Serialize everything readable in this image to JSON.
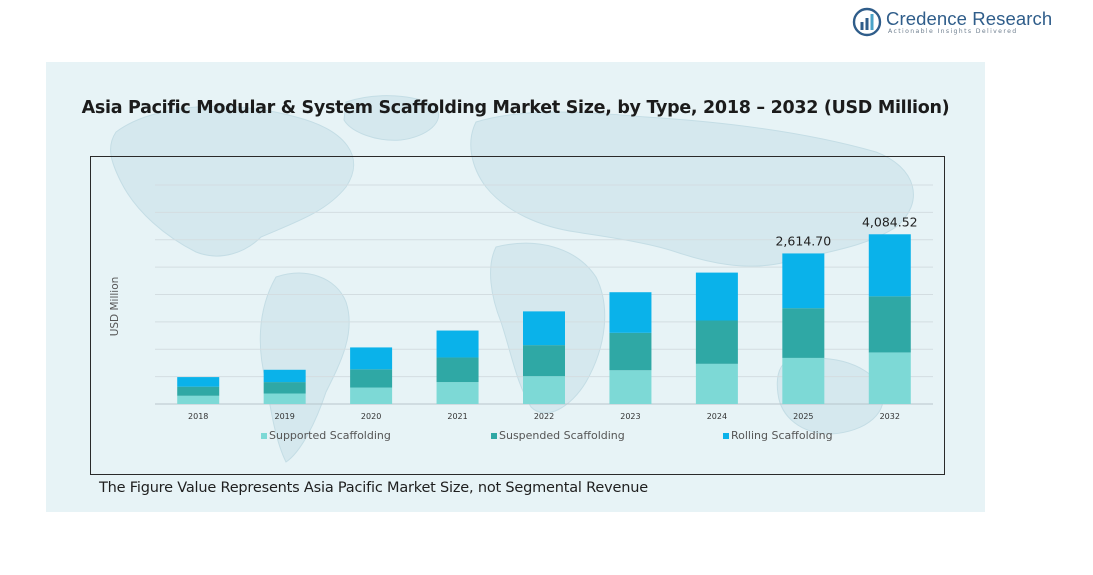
{
  "brand": {
    "name": "Credence Research",
    "tagline": "Actionable Insights Delivered",
    "logo_icon": "bar-chart-circle-icon",
    "color": "#2f5d8a"
  },
  "footnote": "The Figure Value Represents Asia Pacific Market Size, not Segmental Revenue",
  "chart_data": {
    "type": "bar",
    "stacked": true,
    "title": "Asia Pacific Modular & System Scaffolding Market Size, by Type, 2018 – 2032 (USD Million)",
    "xlabel": "",
    "ylabel": "USD Million",
    "ylim": [
      0,
      4800
    ],
    "grid": true,
    "legend_position": "bottom",
    "categories": [
      "2018",
      "2019",
      "2020",
      "2021",
      "2022",
      "2023",
      "2024",
      "2025",
      "2032"
    ],
    "series": [
      {
        "name": "Supported Scaffolding",
        "color": "#7dd9d6",
        "values": [
          180,
          230,
          360,
          480,
          610,
          740,
          880,
          1010,
          1130
        ]
      },
      {
        "name": "Suspended Scaffolding",
        "color": "#2fa8a5",
        "values": [
          200,
          250,
          400,
          540,
          680,
          820,
          950,
          1090,
          1230
        ]
      },
      {
        "name": "Rolling Scaffolding",
        "color": "#0ab2ea",
        "values": [
          210,
          270,
          480,
          590,
          740,
          890,
          1050,
          1200,
          1360
        ]
      }
    ],
    "data_labels": [
      {
        "category": "2025",
        "text": "2,614.70"
      },
      {
        "category": "2032",
        "text": "4,084.52"
      }
    ]
  }
}
